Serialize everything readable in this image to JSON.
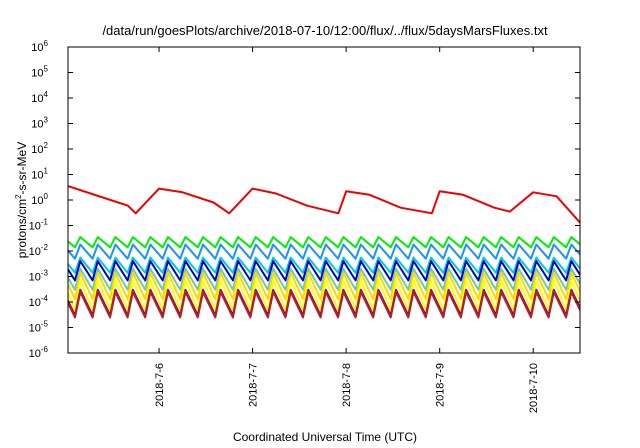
{
  "chart_data": {
    "type": "line",
    "title": "/data/run/goesPlots/archive/2018-07-10/12:00/flux/../flux/5daysMarsFluxes.txt",
    "xlabel": "Coordinated Universal Time (UTC)",
    "ylabel": "protons/cm2-s-sr-MeV",
    "ylabel_parts": {
      "pre": "protons/cm",
      "sup": "2",
      "post": "-s-sr-MeV"
    },
    "yscale": "log",
    "ylim": [
      1e-06,
      1000000.0
    ],
    "xlim": [
      "2018-07-05 00:38",
      "2018-07-10 12:00"
    ],
    "grid": false,
    "y_ticks": [
      {
        "base": "10",
        "exp": "6"
      },
      {
        "base": "10",
        "exp": "5"
      },
      {
        "base": "10",
        "exp": "4"
      },
      {
        "base": "10",
        "exp": "3"
      },
      {
        "base": "10",
        "exp": "2"
      },
      {
        "base": "10",
        "exp": "1"
      },
      {
        "base": "10",
        "exp": "0"
      },
      {
        "base": "10",
        "exp": "-1"
      },
      {
        "base": "10",
        "exp": "-2"
      },
      {
        "base": "10",
        "exp": "-3"
      },
      {
        "base": "10",
        "exp": "-4"
      },
      {
        "base": "10",
        "exp": "-5"
      },
      {
        "base": "10",
        "exp": "-6"
      }
    ],
    "x_ticks": [
      {
        "label": "2018-7-6",
        "x": "2018-07-06 00:00"
      },
      {
        "label": "2018-7-7",
        "x": "2018-07-07 00:00"
      },
      {
        "label": "2018-7-8",
        "x": "2018-07-08 00:00"
      },
      {
        "label": "2018-7-9",
        "x": "2018-07-09 00:00"
      },
      {
        "label": "2018-7-10",
        "x": "2018-07-10 00:00"
      }
    ],
    "oscillation_period_hours": 4.5,
    "series": [
      {
        "color": "#ee0000",
        "points": [
          [
            "2018-07-05 00:38",
            3.5
          ],
          [
            "2018-07-05 08:00",
            1.5
          ],
          [
            "2018-07-05 16:00",
            0.6
          ],
          [
            "2018-07-05 18:00",
            0.3
          ],
          [
            "2018-07-06 00:00",
            2.8
          ],
          [
            "2018-07-06 06:00",
            2.0
          ],
          [
            "2018-07-06 14:00",
            0.8
          ],
          [
            "2018-07-06 18:00",
            0.3
          ],
          [
            "2018-07-07 00:00",
            2.8
          ],
          [
            "2018-07-07 06:00",
            1.8
          ],
          [
            "2018-07-07 14:00",
            0.6
          ],
          [
            "2018-07-07 22:00",
            0.3
          ],
          [
            "2018-07-08 00:00",
            2.2
          ],
          [
            "2018-07-08 06:00",
            1.6
          ],
          [
            "2018-07-08 14:00",
            0.5
          ],
          [
            "2018-07-08 22:00",
            0.3
          ],
          [
            "2018-07-09 00:00",
            2.2
          ],
          [
            "2018-07-09 06:00",
            1.6
          ],
          [
            "2018-07-09 14:00",
            0.5
          ],
          [
            "2018-07-09 18:00",
            0.35
          ],
          [
            "2018-07-10 00:00",
            2.0
          ],
          [
            "2018-07-10 06:00",
            1.4
          ],
          [
            "2018-07-10 12:00",
            0.13
          ]
        ]
      },
      {
        "color": "#00ee00",
        "min": 0.014,
        "max": 0.035
      },
      {
        "color": "#1e90ff",
        "min": 0.005,
        "max": 0.018
      },
      {
        "color": "#00cdcd",
        "min": 0.0014,
        "max": 0.0055
      },
      {
        "color": "#0000cd",
        "min": 0.0007,
        "max": 0.004
      },
      {
        "color": "#66cdaa",
        "min": 0.0003,
        "max": 0.002
      },
      {
        "color": "#ffd700",
        "min": 0.00013,
        "max": 0.0014
      },
      {
        "color": "#ffff00",
        "min": 5e-05,
        "max": 0.0007
      },
      {
        "color": "#8b008b",
        "min": 3e-05,
        "max": 0.0003
      },
      {
        "color": "#b22222",
        "min": 2.5e-05,
        "max": 0.00025
      }
    ]
  }
}
